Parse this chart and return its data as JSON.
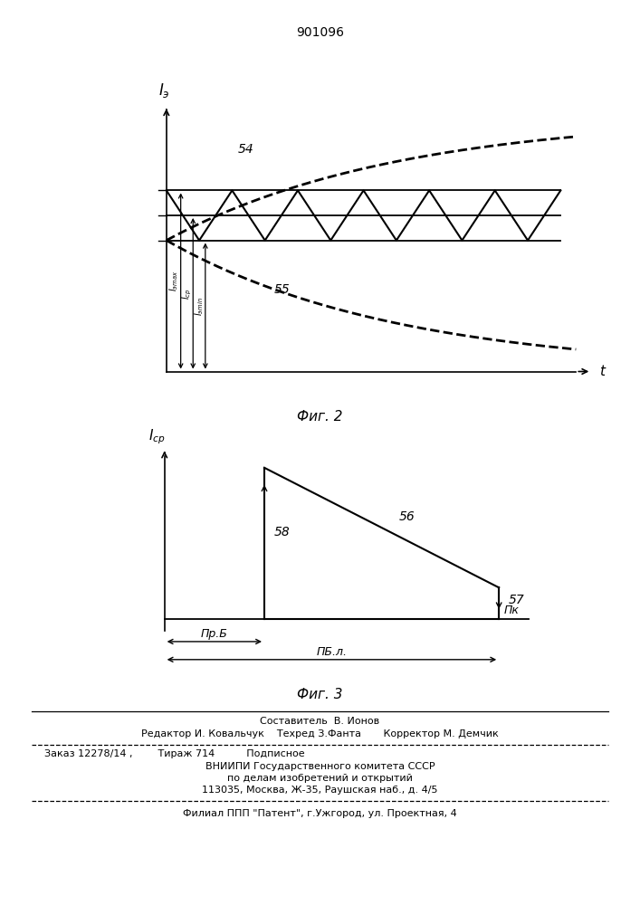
{
  "patent_number": "901096",
  "fig2_title": "Фиг. 2",
  "fig3_title": "Фиг. 3",
  "label_54": "54",
  "label_55": "55",
  "label_56": "56",
  "label_57": "57",
  "label_58": "58",
  "label_pk": "Пк",
  "label_prb": "Пр.Б",
  "label_pbl": "ПБ.л.",
  "footer_line1": "Составитель  В. Ионов",
  "footer_line2": "Редактор И. Ковальчук    Техред З.Фанта       Корректор М. Демчик",
  "footer_line3": "Заказ 12278/14 ,        Тираж 714          Подписное",
  "footer_line4": "ВНИИПИ Государственного комитета СССР",
  "footer_line5": "по делам изобретений и открытий",
  "footer_line6": "113035, Москва, Ж-35, Раушская наб., д. 4/5",
  "footer_line7": "Филиал ППП \"Патент\", г.Ужгород, ул. Проектная, 4"
}
